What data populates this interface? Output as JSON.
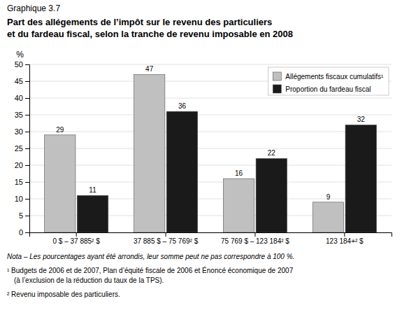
{
  "chart_data": {
    "type": "bar",
    "title": "Graphique 3.7",
    "subtitle": "Part des allégements de l’impôt sur le revenu des particuliers\net du fardeau fiscal, selon la tranche de revenu imposable en 2008",
    "y_label": "%",
    "categories": [
      "0 $ – 37 885² $",
      "37 885 $ – 75 769² $",
      "75 769 $ – 123 184² $",
      "123 184+² $"
    ],
    "series": [
      {
        "name": "Allégements fiscaux cumulatifs¹",
        "color": "#c0c0c0",
        "values": [
          29,
          47,
          16,
          9
        ]
      },
      {
        "name": "Proportion du fardeau fiscal",
        "color": "#1a1a1a",
        "values": [
          11,
          36,
          22,
          32
        ]
      }
    ],
    "ylim": [
      0,
      50
    ],
    "yticks": [
      0,
      5,
      10,
      15,
      20,
      25,
      30,
      35,
      40,
      45,
      50
    ],
    "grid": true,
    "legend": "upper right",
    "data_labels": true,
    "annotations": [
      "Nota – Les pourcentages ayant été arrondis, leur somme peut ne pas correspondre à 100 %.",
      "¹ Budgets de 2006 et de 2007, Plan d’équité fiscale de 2006 et Énoncé économique de 2007",
      "(à l’exclusion de la réduction du taux de la TPS).",
      "² Revenu imposable des particuliers."
    ]
  }
}
